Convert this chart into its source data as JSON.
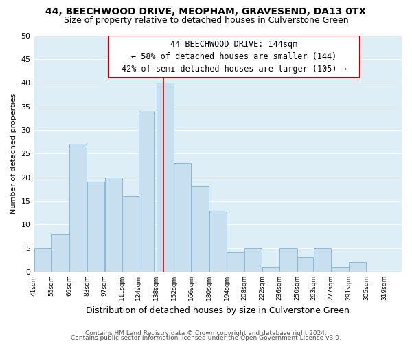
{
  "title": "44, BEECHWOOD DRIVE, MEOPHAM, GRAVESEND, DA13 0TX",
  "subtitle": "Size of property relative to detached houses in Culverstone Green",
  "xlabel": "Distribution of detached houses by size in Culverstone Green",
  "ylabel": "Number of detached properties",
  "bar_left_edges": [
    41,
    55,
    69,
    83,
    97,
    111,
    124,
    138,
    152,
    166,
    180,
    194,
    208,
    222,
    236,
    250,
    263,
    277,
    291,
    305
  ],
  "bar_heights": [
    5,
    8,
    27,
    19,
    20,
    16,
    34,
    40,
    23,
    18,
    13,
    4,
    5,
    1,
    5,
    3,
    5,
    1,
    2,
    0
  ],
  "bar_widths": [
    14,
    14,
    14,
    14,
    14,
    14,
    13,
    14,
    14,
    14,
    14,
    14,
    14,
    14,
    14,
    13,
    14,
    14,
    14,
    14
  ],
  "bar_color": "#c8dff0",
  "bar_edgecolor": "#7fb3d3",
  "vline_x": 144,
  "vline_color": "#cc0000",
  "ann_line1": "44 BEECHWOOD DRIVE: 144sqm",
  "ann_line2": "← 58% of detached houses are smaller (144)",
  "ann_line3": "42% of semi-detached houses are larger (105) →",
  "tick_labels": [
    "41sqm",
    "55sqm",
    "69sqm",
    "83sqm",
    "97sqm",
    "111sqm",
    "124sqm",
    "138sqm",
    "152sqm",
    "166sqm",
    "180sqm",
    "194sqm",
    "208sqm",
    "222sqm",
    "236sqm",
    "250sqm",
    "263sqm",
    "277sqm",
    "291sqm",
    "305sqm",
    "319sqm"
  ],
  "tick_positions": [
    41,
    55,
    69,
    83,
    97,
    111,
    124,
    138,
    152,
    166,
    180,
    194,
    208,
    222,
    236,
    250,
    263,
    277,
    291,
    305,
    319
  ],
  "ylim": [
    0,
    50
  ],
  "xlim": [
    41,
    333
  ],
  "yticks": [
    0,
    5,
    10,
    15,
    20,
    25,
    30,
    35,
    40,
    45,
    50
  ],
  "grid_color": "#ffffff",
  "bg_color": "#ddeef7",
  "footer_line1": "Contains HM Land Registry data © Crown copyright and database right 2024.",
  "footer_line2": "Contains public sector information licensed under the Open Government Licence v3.0.",
  "title_fontsize": 10,
  "subtitle_fontsize": 9,
  "xlabel_fontsize": 9,
  "ylabel_fontsize": 8,
  "footer_fontsize": 6.5,
  "tick_fontsize": 6.5,
  "ytick_fontsize": 8,
  "ann_fontsize": 8.5
}
